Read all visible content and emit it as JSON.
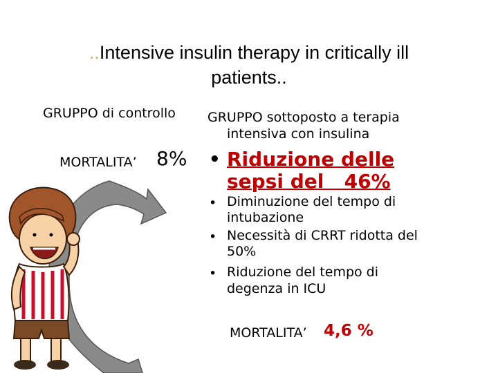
{
  "title": {
    "prefix": "..",
    "line1": "Intensive insulin therapy in critically ill",
    "line2": "patients.."
  },
  "control_group": {
    "label": "GRUPPO di controllo",
    "mortality_label": "MORTALITA’",
    "mortality_value": "8%"
  },
  "treatment_group": {
    "label_line1": "GRUPPO sottoposto a terapia",
    "label_line2": "intensiva con insulina",
    "highlight": {
      "bullet": "•",
      "line1": "Riduzione delle",
      "line2": "sepsi del   46%"
    },
    "items": [
      {
        "bullet": "•",
        "line1": "Diminuzione del tempo di",
        "line2": "intubazione"
      },
      {
        "bullet": "•",
        "line1": "Necessità di CRRT ridotta del",
        "line2": "50%"
      },
      {
        "bullet": "•",
        "line1": "Riduzione del tempo di",
        "line2": "degenza in ICU"
      }
    ],
    "mortality_label": "MORTALITA’",
    "mortality_value": "4,6 %"
  },
  "colors": {
    "accent_red": "#c00000",
    "title_dots": "#c9b07a",
    "arrow_gray": "#8a8a8a"
  },
  "icons": [
    "cartoon-girl-illustration",
    "curved-arrow-icon"
  ]
}
